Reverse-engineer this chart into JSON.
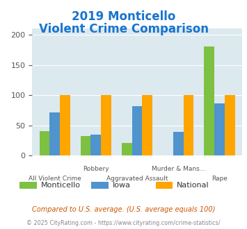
{
  "title_line1": "2019 Monticello",
  "title_line2": "Violent Crime Comparison",
  "title_color": "#1874cd",
  "categories": [
    "All Violent Crime",
    "Robbery",
    "Aggravated Assault",
    "Murder & Mans...",
    "Rape"
  ],
  "row1_labels": {
    "1": "Robbery",
    "3": "Murder & Mans..."
  },
  "row2_labels": {
    "0": "All Violent Crime",
    "2": "Aggravated Assault",
    "4": "Rape"
  },
  "monticello": [
    41,
    33,
    21,
    0,
    181
  ],
  "iowa": [
    72,
    35,
    82,
    40,
    87
  ],
  "national": [
    100,
    100,
    100,
    100,
    100
  ],
  "color_monticello": "#7dc142",
  "color_iowa": "#4f94cd",
  "color_national": "#ffa500",
  "ylim": [
    0,
    210
  ],
  "yticks": [
    0,
    50,
    100,
    150,
    200
  ],
  "plot_bg": "#dce9ef",
  "legend_labels": [
    "Monticello",
    "Iowa",
    "National"
  ],
  "footnote1": "Compared to U.S. average. (U.S. average equals 100)",
  "footnote2": "© 2025 CityRating.com - https://www.cityrating.com/crime-statistics/",
  "footnote1_color": "#cc5500",
  "footnote2_color": "#888888",
  "bar_width": 0.25
}
